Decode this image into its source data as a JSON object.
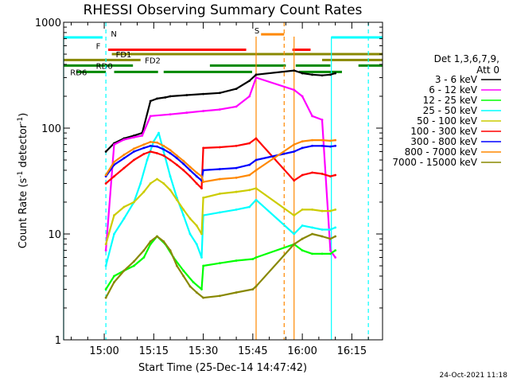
{
  "chart_data": {
    "type": "line",
    "title": "RHESSI Observing Summary Count Rates",
    "xlabel": "Start Time (25-Dec-14 14:47:42)",
    "ylabel_main": "Count Rate (s",
    "ylabel_sup1": "-1",
    "ylabel_mid": " detector",
    "ylabel_sup2": "-1",
    "ylabel_end": ")",
    "y_log": true,
    "ylim": [
      1,
      1000
    ],
    "xlim_minutes": [
      -12.3,
      84.3
    ],
    "xticks": [
      {
        "minute": 0,
        "label": "15:00"
      },
      {
        "minute": 15,
        "label": "15:15"
      },
      {
        "minute": 30,
        "label": "15:30"
      },
      {
        "minute": 45,
        "label": "15:45"
      },
      {
        "minute": 60,
        "label": "16:00"
      },
      {
        "minute": 75,
        "label": "16:15"
      }
    ],
    "yticks": [
      {
        "value": 1,
        "label": "1"
      },
      {
        "value": 10,
        "label": "10"
      },
      {
        "value": 100,
        "label": "100"
      },
      {
        "value": 1000,
        "label": "1000"
      }
    ],
    "legend_header": [
      "Det 1,3,6,7,9,",
      "Att 0"
    ],
    "legend_placement": "right",
    "footer_date": "24-Oct-2021 11:18",
    "series": [
      {
        "name": "3 - 6 keV",
        "color": "#000000",
        "x": [
          0.5,
          3,
          6,
          9,
          11.5,
          14,
          16,
          18.5,
          20,
          25,
          30,
          35,
          40,
          44,
          46,
          57.5,
          60,
          63,
          66,
          68.5,
          70
        ],
        "y": [
          60,
          72,
          80,
          85,
          90,
          180,
          190,
          195,
          200,
          205,
          210,
          215,
          235,
          280,
          320,
          350,
          330,
          320,
          315,
          320,
          330
        ]
      },
      {
        "name": "6 - 12 keV",
        "color": "#ff00ff",
        "x": [
          0.5,
          3,
          6,
          9,
          11.5,
          14,
          20,
          25,
          30,
          35,
          40,
          44,
          46,
          57.5,
          60,
          63,
          66,
          68.5,
          70
        ],
        "y": [
          7,
          70,
          78,
          82,
          85,
          130,
          135,
          140,
          145,
          150,
          160,
          200,
          300,
          230,
          200,
          130,
          120,
          7,
          6
        ]
      },
      {
        "name": "12 - 25 keV",
        "color": "#00ff00",
        "x": [
          0.5,
          3,
          6,
          9,
          12,
          14,
          16,
          18.5,
          21,
          24,
          27,
          29.5,
          30,
          35,
          40,
          45,
          46,
          57.5,
          60,
          63,
          66,
          68.5,
          70
        ],
        "y": [
          3,
          4,
          4.5,
          5,
          6,
          8,
          9.5,
          8,
          6,
          4.5,
          3.5,
          3,
          5,
          5.3,
          5.6,
          5.8,
          6,
          8,
          7,
          6.5,
          6.5,
          6.5,
          7
        ]
      },
      {
        "name": "25 - 50 keV",
        "color": "#00ffff",
        "x": [
          0.5,
          3,
          6,
          9,
          11,
          13,
          15,
          16.5,
          18,
          20,
          22,
          24,
          26,
          28,
          29.5,
          30,
          35,
          40,
          44,
          46,
          57.5,
          60,
          63,
          66,
          68.5,
          70
        ],
        "y": [
          5,
          10,
          14,
          20,
          30,
          50,
          75,
          90,
          60,
          35,
          22,
          15,
          10,
          8,
          6,
          15,
          16,
          17,
          18,
          21,
          10,
          12,
          11.5,
          11,
          11,
          11.5
        ]
      },
      {
        "name": "50 - 100 keV",
        "color": "#cccc00",
        "x": [
          0.5,
          3,
          6,
          9,
          12,
          14,
          16,
          18,
          20,
          22,
          24,
          26,
          28,
          29.5,
          30,
          35,
          40,
          44,
          46,
          57.5,
          60,
          63,
          66,
          68.5,
          70
        ],
        "y": [
          8,
          15,
          18,
          20,
          25,
          30,
          33,
          30,
          26,
          21,
          17,
          14,
          12,
          10,
          22,
          24,
          25,
          26,
          27,
          15,
          17,
          17,
          16.5,
          16.5,
          17
        ]
      },
      {
        "name": "100 - 300 keV",
        "color": "#ff0000",
        "x": [
          0.5,
          3,
          6,
          9,
          12,
          14,
          16,
          18,
          20,
          22,
          24,
          26,
          28,
          29.5,
          30,
          35,
          40,
          44,
          46,
          57.5,
          60,
          63,
          66,
          68.5,
          70
        ],
        "y": [
          30,
          35,
          42,
          50,
          57,
          60,
          58,
          55,
          50,
          45,
          40,
          35,
          30,
          27,
          65,
          66,
          68,
          72,
          80,
          32,
          36,
          38,
          37,
          35,
          36
        ]
      },
      {
        "name": "300 - 800 keV",
        "color": "#0000ff",
        "x": [
          0.5,
          3,
          6,
          9,
          12,
          14,
          16,
          18,
          20,
          22,
          24,
          26,
          28,
          29.5,
          30,
          35,
          40,
          44,
          46,
          57.5,
          60,
          63,
          66,
          68.5,
          70
        ],
        "y": [
          35,
          45,
          52,
          60,
          65,
          68,
          67,
          63,
          58,
          52,
          46,
          40,
          35,
          32,
          40,
          41,
          42,
          45,
          50,
          60,
          65,
          68,
          68,
          67,
          68
        ]
      },
      {
        "name": "800 - 7000 keV",
        "color": "#ff8800",
        "x": [
          0.5,
          3,
          6,
          9,
          12,
          14,
          16,
          18,
          20,
          22,
          24,
          26,
          28,
          29.5,
          30,
          35,
          40,
          44,
          46,
          57.5,
          60,
          63,
          66,
          68.5,
          70
        ],
        "y": [
          36,
          48,
          56,
          64,
          70,
          74,
          73,
          68,
          62,
          55,
          49,
          43,
          38,
          35,
          31,
          33,
          34,
          36,
          40,
          70,
          75,
          77,
          77,
          76,
          77
        ]
      },
      {
        "name": "7000 - 15000 keV",
        "color": "#888800",
        "x": [
          0.5,
          3,
          6,
          9,
          12,
          14,
          16,
          18,
          20,
          22,
          24,
          26,
          28,
          30,
          35,
          40,
          45,
          46,
          57.5,
          60,
          63,
          66,
          68.5,
          70
        ],
        "y": [
          2.5,
          3.5,
          4.5,
          5.5,
          7,
          8.5,
          9.5,
          8.5,
          7,
          5,
          4,
          3.2,
          2.8,
          2.5,
          2.6,
          2.8,
          3,
          3.2,
          8,
          9,
          10,
          9.5,
          9,
          9.5
        ]
      }
    ],
    "state_bars": [
      {
        "label": "S",
        "color": "#ff8800",
        "y": 770,
        "segments": [
          [
            47.5,
            54.5
          ]
        ],
        "label_at": 45.5
      },
      {
        "label": "F",
        "color": "#ff0000",
        "y": 550,
        "segments": [
          [
            1.2,
            43
          ],
          [
            57,
            62.5
          ]
        ],
        "label_at": -2.5
      },
      {
        "label": "FD1",
        "color": "#888800",
        "y": 500,
        "segments": [
          [
            2.3,
            84.3
          ]
        ],
        "label_at": 3.5
      },
      {
        "label": "FD2",
        "color": "#888800",
        "y": 440,
        "segments": [
          [
            -12.3,
            11
          ],
          [
            66,
            84.3
          ]
        ],
        "label_at": 12.3
      },
      {
        "label": "RD0",
        "color": "#008800",
        "y": 390,
        "segments": [
          [
            -12.3,
            8.7
          ],
          [
            32,
            55
          ],
          [
            58,
            68.5
          ],
          [
            77,
            84.3
          ]
        ],
        "label_at": -2.5
      },
      {
        "label": "RD6",
        "color": "#008800",
        "y": 340,
        "segments": [
          [
            -8.5,
            0.5
          ],
          [
            3,
            16.3
          ],
          [
            18,
            44.8
          ],
          [
            59,
            72
          ]
        ],
        "label_at": -10.3
      },
      {
        "label": "N",
        "color": "#00ffff",
        "y": 720,
        "segments": [
          [
            -12.3,
            -0.5
          ],
          [
            68.8,
            84.3
          ]
        ],
        "label_at": 2
      }
    ],
    "dashed_verticals": [
      {
        "minute": 0.5,
        "color": "#00ffff"
      },
      {
        "minute": 54.5,
        "color": "#ff8800"
      },
      {
        "minute": 80,
        "color": "#00ffff"
      }
    ],
    "solid_verticals": [
      {
        "minute": -12.3,
        "color": "#00ffff"
      },
      {
        "minute": 46,
        "color": "#ff8800"
      },
      {
        "minute": 57.5,
        "color": "#ff8800"
      },
      {
        "minute": 68.8,
        "color": "#00ffff"
      }
    ]
  }
}
